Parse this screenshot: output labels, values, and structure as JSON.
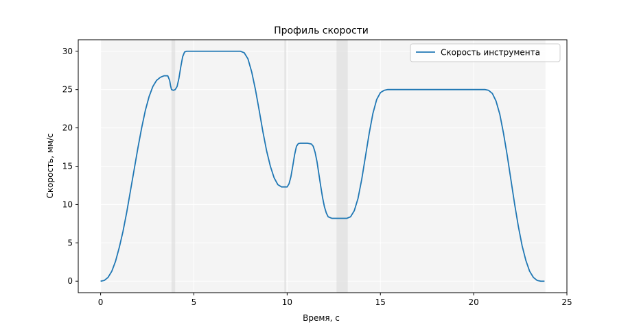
{
  "chart_data": {
    "type": "line",
    "title": "Профиль скорости",
    "xlabel": "Время, с",
    "ylabel": "Скорость, мм/с",
    "xlim": [
      -1.2,
      25
    ],
    "ylim": [
      -1.5,
      31.5
    ],
    "xticks": [
      0,
      5,
      10,
      15,
      20,
      25
    ],
    "yticks": [
      0,
      5,
      10,
      15,
      20,
      25,
      30
    ],
    "grid": true,
    "legend_position": "top-right",
    "background_band": [
      0,
      23.85
    ],
    "shaded_spans": [
      [
        3.8,
        4.0
      ],
      [
        9.85,
        9.95
      ],
      [
        12.65,
        13.25
      ]
    ],
    "series": [
      {
        "name": "Скорость инструмента",
        "color": "#1f77b4",
        "x": [
          0,
          0.2,
          0.4,
          0.6,
          0.8,
          1.0,
          1.2,
          1.4,
          1.6,
          1.8,
          2.0,
          2.2,
          2.4,
          2.6,
          2.8,
          3.0,
          3.2,
          3.4,
          3.6,
          3.7,
          3.75,
          3.8,
          3.9,
          4.0,
          4.1,
          4.2,
          4.3,
          4.4,
          4.5,
          4.6,
          5.0,
          6.0,
          7.0,
          7.5,
          7.7,
          7.9,
          8.1,
          8.3,
          8.5,
          8.7,
          8.9,
          9.1,
          9.3,
          9.5,
          9.7,
          9.9,
          10.0,
          10.1,
          10.2,
          10.3,
          10.4,
          10.5,
          10.6,
          10.7,
          10.9,
          11.1,
          11.3,
          11.4,
          11.5,
          11.6,
          11.7,
          11.8,
          11.9,
          12.0,
          12.1,
          12.2,
          12.4,
          12.6,
          13.2,
          13.4,
          13.6,
          13.8,
          14.0,
          14.2,
          14.4,
          14.6,
          14.8,
          15.0,
          15.2,
          15.4,
          16.0,
          18.0,
          20.0,
          20.6,
          20.8,
          21.0,
          21.2,
          21.4,
          21.6,
          21.8,
          22.0,
          22.2,
          22.4,
          22.6,
          22.8,
          23.0,
          23.2,
          23.4,
          23.6,
          23.8
        ],
        "y": [
          0,
          0.1,
          0.5,
          1.3,
          2.6,
          4.4,
          6.5,
          9.0,
          11.8,
          14.6,
          17.4,
          20.0,
          22.3,
          24.1,
          25.4,
          26.2,
          26.6,
          26.8,
          26.8,
          26.2,
          25.5,
          25.0,
          24.9,
          25.0,
          25.4,
          26.5,
          28.0,
          29.3,
          29.9,
          30.0,
          30.0,
          30.0,
          30.0,
          30.0,
          29.8,
          29.0,
          27.3,
          25.0,
          22.3,
          19.5,
          17.0,
          15.0,
          13.5,
          12.6,
          12.3,
          12.3,
          12.3,
          12.7,
          13.6,
          15.0,
          16.5,
          17.6,
          17.95,
          18.0,
          18.0,
          18.0,
          17.9,
          17.6,
          16.8,
          15.6,
          14.0,
          12.4,
          10.9,
          9.7,
          8.9,
          8.4,
          8.2,
          8.2,
          8.2,
          8.4,
          9.2,
          10.8,
          13.3,
          16.3,
          19.3,
          21.9,
          23.7,
          24.6,
          24.9,
          25.0,
          25.0,
          25.0,
          25.0,
          25.0,
          24.9,
          24.5,
          23.5,
          21.8,
          19.3,
          16.4,
          13.2,
          10.0,
          7.1,
          4.6,
          2.7,
          1.3,
          0.5,
          0.1,
          0,
          0
        ]
      }
    ]
  }
}
